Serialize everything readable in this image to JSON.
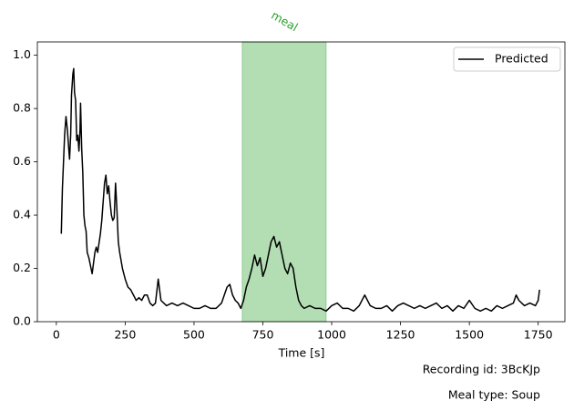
{
  "chart_data": {
    "type": "line",
    "xlabel": "Time [s]",
    "xlim": [
      -69,
      1847
    ],
    "ylim": [
      0,
      1.05
    ],
    "xticks": [
      0,
      250,
      500,
      750,
      1000,
      1250,
      1500,
      1750
    ],
    "yticks": [
      {
        "value": 0,
        "label": "0.0"
      },
      0.2,
      0.4,
      0.6,
      0.8,
      {
        "value": 1,
        "label": "1.0"
      }
    ],
    "legend": "upper right",
    "span": {
      "start": 675,
      "end": 980,
      "label": "meal",
      "color": "#2ca02c",
      "alpha": 0.36
    },
    "annotations": [
      "Recording id: 3BcKJp",
      "Meal type: Soup"
    ],
    "x": [
      18,
      22,
      30,
      35,
      40,
      45,
      48,
      52,
      55,
      60,
      63,
      66,
      70,
      74,
      78,
      82,
      86,
      88,
      92,
      96,
      100,
      104,
      108,
      112,
      118,
      124,
      130,
      135,
      140,
      145,
      150,
      160,
      165,
      170,
      175,
      180,
      185,
      190,
      195,
      200,
      205,
      210,
      215,
      220,
      225,
      230,
      240,
      250,
      260,
      270,
      280,
      290,
      300,
      310,
      320,
      330,
      340,
      350,
      360,
      370,
      380,
      400,
      420,
      440,
      460,
      480,
      500,
      520,
      540,
      560,
      580,
      600,
      620,
      630,
      640,
      650,
      660,
      670,
      680,
      690,
      700,
      710,
      720,
      730,
      740,
      750,
      760,
      770,
      780,
      790,
      800,
      810,
      820,
      830,
      840,
      850,
      860,
      870,
      880,
      890,
      900,
      920,
      940,
      960,
      980,
      1000,
      1020,
      1040,
      1060,
      1080,
      1100,
      1120,
      1140,
      1160,
      1180,
      1200,
      1220,
      1240,
      1260,
      1280,
      1300,
      1320,
      1340,
      1360,
      1380,
      1400,
      1420,
      1440,
      1460,
      1480,
      1500,
      1520,
      1540,
      1560,
      1580,
      1600,
      1620,
      1640,
      1660,
      1670,
      1680,
      1700,
      1720,
      1740,
      1750,
      1755
    ],
    "series": [
      {
        "name": "Predicted",
        "color": "#000000",
        "values": [
          0.33,
          0.5,
          0.7,
          0.77,
          0.72,
          0.65,
          0.61,
          0.7,
          0.85,
          0.93,
          0.95,
          0.86,
          0.83,
          0.68,
          0.7,
          0.64,
          0.72,
          0.82,
          0.65,
          0.56,
          0.4,
          0.36,
          0.34,
          0.26,
          0.24,
          0.21,
          0.18,
          0.22,
          0.26,
          0.28,
          0.26,
          0.33,
          0.38,
          0.45,
          0.52,
          0.55,
          0.48,
          0.51,
          0.45,
          0.4,
          0.38,
          0.39,
          0.52,
          0.42,
          0.3,
          0.26,
          0.2,
          0.16,
          0.13,
          0.12,
          0.1,
          0.08,
          0.09,
          0.08,
          0.1,
          0.1,
          0.07,
          0.06,
          0.07,
          0.16,
          0.08,
          0.06,
          0.07,
          0.06,
          0.07,
          0.06,
          0.05,
          0.05,
          0.06,
          0.05,
          0.05,
          0.07,
          0.13,
          0.14,
          0.1,
          0.08,
          0.07,
          0.05,
          0.08,
          0.13,
          0.16,
          0.2,
          0.25,
          0.21,
          0.24,
          0.17,
          0.2,
          0.25,
          0.3,
          0.32,
          0.28,
          0.3,
          0.25,
          0.2,
          0.18,
          0.22,
          0.2,
          0.13,
          0.08,
          0.06,
          0.05,
          0.06,
          0.05,
          0.05,
          0.04,
          0.06,
          0.07,
          0.05,
          0.05,
          0.04,
          0.06,
          0.1,
          0.06,
          0.05,
          0.05,
          0.06,
          0.04,
          0.06,
          0.07,
          0.06,
          0.05,
          0.06,
          0.05,
          0.06,
          0.07,
          0.05,
          0.06,
          0.04,
          0.06,
          0.05,
          0.08,
          0.05,
          0.04,
          0.05,
          0.04,
          0.06,
          0.05,
          0.06,
          0.07,
          0.1,
          0.08,
          0.06,
          0.07,
          0.06,
          0.08,
          0.12
        ]
      }
    ]
  }
}
